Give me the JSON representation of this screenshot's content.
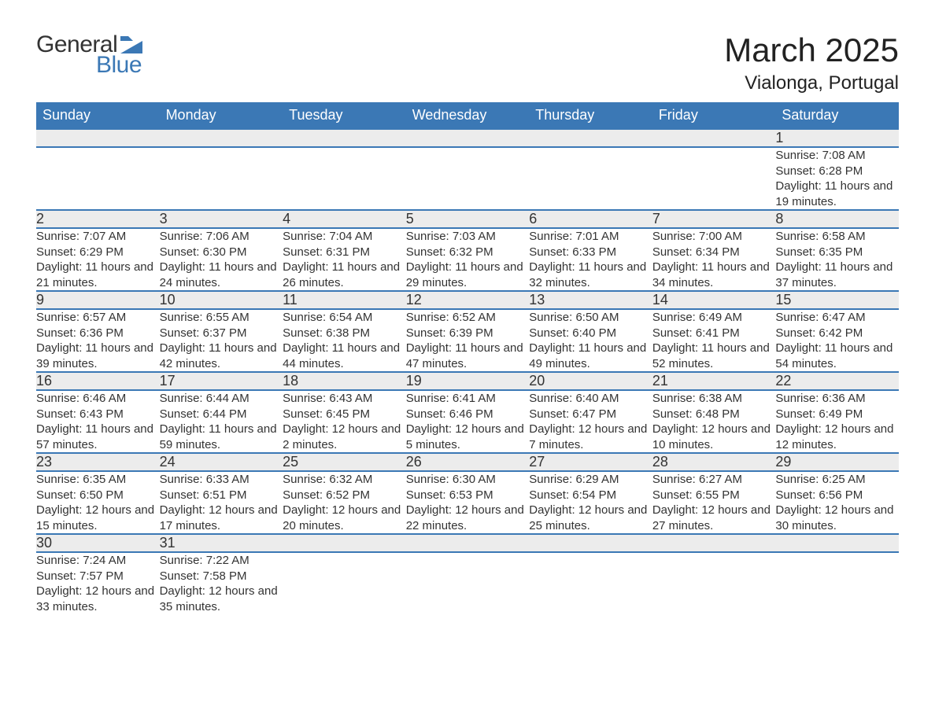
{
  "logo": {
    "word1": "General",
    "word2": "Blue",
    "brand_text_color": "#333333",
    "brand_accent_color": "#3b78b5"
  },
  "header": {
    "month_title": "March 2025",
    "location": "Vialonga, Portugal"
  },
  "colors": {
    "header_row_bg": "#3b78b5",
    "header_row_text": "#ffffff",
    "daynum_bg": "#ececec",
    "row_border": "#3b78b5",
    "body_text": "#333333",
    "page_bg": "#ffffff"
  },
  "typography": {
    "month_title_fontsize": 42,
    "location_fontsize": 24,
    "weekday_fontsize": 18,
    "daynum_fontsize": 18,
    "detail_fontsize": 15
  },
  "weekdays": [
    "Sunday",
    "Monday",
    "Tuesday",
    "Wednesday",
    "Thursday",
    "Friday",
    "Saturday"
  ],
  "weeks": [
    [
      null,
      null,
      null,
      null,
      null,
      null,
      {
        "n": "1",
        "sunrise": "Sunrise: 7:08 AM",
        "sunset": "Sunset: 6:28 PM",
        "daylight": "Daylight: 11 hours and 19 minutes."
      }
    ],
    [
      {
        "n": "2",
        "sunrise": "Sunrise: 7:07 AM",
        "sunset": "Sunset: 6:29 PM",
        "daylight": "Daylight: 11 hours and 21 minutes."
      },
      {
        "n": "3",
        "sunrise": "Sunrise: 7:06 AM",
        "sunset": "Sunset: 6:30 PM",
        "daylight": "Daylight: 11 hours and 24 minutes."
      },
      {
        "n": "4",
        "sunrise": "Sunrise: 7:04 AM",
        "sunset": "Sunset: 6:31 PM",
        "daylight": "Daylight: 11 hours and 26 minutes."
      },
      {
        "n": "5",
        "sunrise": "Sunrise: 7:03 AM",
        "sunset": "Sunset: 6:32 PM",
        "daylight": "Daylight: 11 hours and 29 minutes."
      },
      {
        "n": "6",
        "sunrise": "Sunrise: 7:01 AM",
        "sunset": "Sunset: 6:33 PM",
        "daylight": "Daylight: 11 hours and 32 minutes."
      },
      {
        "n": "7",
        "sunrise": "Sunrise: 7:00 AM",
        "sunset": "Sunset: 6:34 PM",
        "daylight": "Daylight: 11 hours and 34 minutes."
      },
      {
        "n": "8",
        "sunrise": "Sunrise: 6:58 AM",
        "sunset": "Sunset: 6:35 PM",
        "daylight": "Daylight: 11 hours and 37 minutes."
      }
    ],
    [
      {
        "n": "9",
        "sunrise": "Sunrise: 6:57 AM",
        "sunset": "Sunset: 6:36 PM",
        "daylight": "Daylight: 11 hours and 39 minutes."
      },
      {
        "n": "10",
        "sunrise": "Sunrise: 6:55 AM",
        "sunset": "Sunset: 6:37 PM",
        "daylight": "Daylight: 11 hours and 42 minutes."
      },
      {
        "n": "11",
        "sunrise": "Sunrise: 6:54 AM",
        "sunset": "Sunset: 6:38 PM",
        "daylight": "Daylight: 11 hours and 44 minutes."
      },
      {
        "n": "12",
        "sunrise": "Sunrise: 6:52 AM",
        "sunset": "Sunset: 6:39 PM",
        "daylight": "Daylight: 11 hours and 47 minutes."
      },
      {
        "n": "13",
        "sunrise": "Sunrise: 6:50 AM",
        "sunset": "Sunset: 6:40 PM",
        "daylight": "Daylight: 11 hours and 49 minutes."
      },
      {
        "n": "14",
        "sunrise": "Sunrise: 6:49 AM",
        "sunset": "Sunset: 6:41 PM",
        "daylight": "Daylight: 11 hours and 52 minutes."
      },
      {
        "n": "15",
        "sunrise": "Sunrise: 6:47 AM",
        "sunset": "Sunset: 6:42 PM",
        "daylight": "Daylight: 11 hours and 54 minutes."
      }
    ],
    [
      {
        "n": "16",
        "sunrise": "Sunrise: 6:46 AM",
        "sunset": "Sunset: 6:43 PM",
        "daylight": "Daylight: 11 hours and 57 minutes."
      },
      {
        "n": "17",
        "sunrise": "Sunrise: 6:44 AM",
        "sunset": "Sunset: 6:44 PM",
        "daylight": "Daylight: 11 hours and 59 minutes."
      },
      {
        "n": "18",
        "sunrise": "Sunrise: 6:43 AM",
        "sunset": "Sunset: 6:45 PM",
        "daylight": "Daylight: 12 hours and 2 minutes."
      },
      {
        "n": "19",
        "sunrise": "Sunrise: 6:41 AM",
        "sunset": "Sunset: 6:46 PM",
        "daylight": "Daylight: 12 hours and 5 minutes."
      },
      {
        "n": "20",
        "sunrise": "Sunrise: 6:40 AM",
        "sunset": "Sunset: 6:47 PM",
        "daylight": "Daylight: 12 hours and 7 minutes."
      },
      {
        "n": "21",
        "sunrise": "Sunrise: 6:38 AM",
        "sunset": "Sunset: 6:48 PM",
        "daylight": "Daylight: 12 hours and 10 minutes."
      },
      {
        "n": "22",
        "sunrise": "Sunrise: 6:36 AM",
        "sunset": "Sunset: 6:49 PM",
        "daylight": "Daylight: 12 hours and 12 minutes."
      }
    ],
    [
      {
        "n": "23",
        "sunrise": "Sunrise: 6:35 AM",
        "sunset": "Sunset: 6:50 PM",
        "daylight": "Daylight: 12 hours and 15 minutes."
      },
      {
        "n": "24",
        "sunrise": "Sunrise: 6:33 AM",
        "sunset": "Sunset: 6:51 PM",
        "daylight": "Daylight: 12 hours and 17 minutes."
      },
      {
        "n": "25",
        "sunrise": "Sunrise: 6:32 AM",
        "sunset": "Sunset: 6:52 PM",
        "daylight": "Daylight: 12 hours and 20 minutes."
      },
      {
        "n": "26",
        "sunrise": "Sunrise: 6:30 AM",
        "sunset": "Sunset: 6:53 PM",
        "daylight": "Daylight: 12 hours and 22 minutes."
      },
      {
        "n": "27",
        "sunrise": "Sunrise: 6:29 AM",
        "sunset": "Sunset: 6:54 PM",
        "daylight": "Daylight: 12 hours and 25 minutes."
      },
      {
        "n": "28",
        "sunrise": "Sunrise: 6:27 AM",
        "sunset": "Sunset: 6:55 PM",
        "daylight": "Daylight: 12 hours and 27 minutes."
      },
      {
        "n": "29",
        "sunrise": "Sunrise: 6:25 AM",
        "sunset": "Sunset: 6:56 PM",
        "daylight": "Daylight: 12 hours and 30 minutes."
      }
    ],
    [
      {
        "n": "30",
        "sunrise": "Sunrise: 7:24 AM",
        "sunset": "Sunset: 7:57 PM",
        "daylight": "Daylight: 12 hours and 33 minutes."
      },
      {
        "n": "31",
        "sunrise": "Sunrise: 7:22 AM",
        "sunset": "Sunset: 7:58 PM",
        "daylight": "Daylight: 12 hours and 35 minutes."
      },
      null,
      null,
      null,
      null,
      null
    ]
  ]
}
